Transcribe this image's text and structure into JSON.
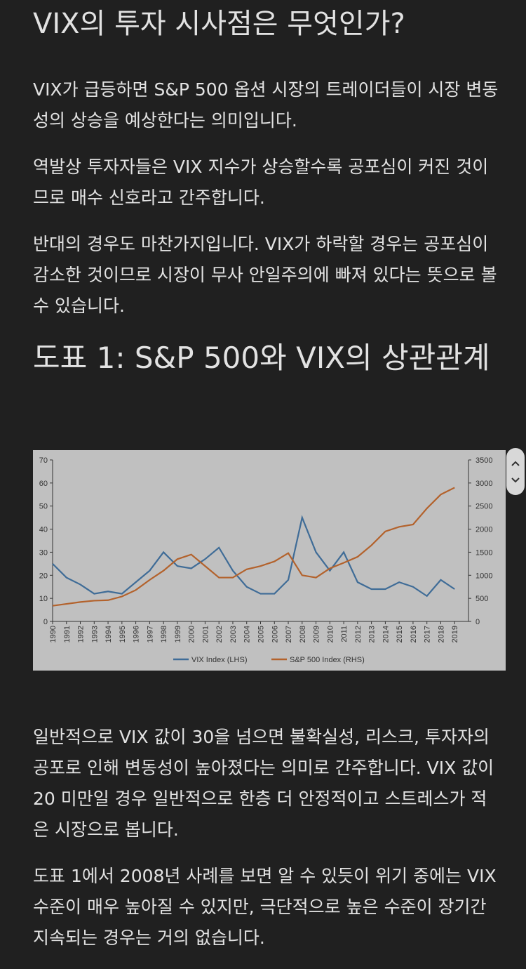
{
  "header": {
    "title": "VIX의 투자 시사점은 무엇인가?"
  },
  "paragraphs": [
    "VIX가 급등하면 S&P 500 옵션 시장의 트레이더들이 시장 변동성의 상승을 예상한다는 의미입니다.",
    "역발상 투자자들은 VIX 지수가 상승할수록 공포심이 커진 것이므로 매수 신호라고 간주합니다.",
    "반대의 경우도 마찬가지입니다. VIX가 하락할 경우는 공포심이 감소한 것이므로 시장이 무사 안일주의에 빠져 있다는 뜻으로 볼 수 있습니다."
  ],
  "figure_title": "도표 1: S&P 500와 VIX의 상관관계",
  "chart_data": {
    "type": "line",
    "x": [
      1990,
      1991,
      1992,
      1993,
      1994,
      1995,
      1996,
      1997,
      1998,
      1999,
      2000,
      2001,
      2002,
      2003,
      2004,
      2005,
      2006,
      2007,
      2008,
      2009,
      2010,
      2011,
      2012,
      2013,
      2014,
      2015,
      2016,
      2017,
      2018,
      2019
    ],
    "xlim": [
      1990,
      2020
    ],
    "xticks": [
      1990,
      1991,
      1992,
      1993,
      1994,
      1995,
      1996,
      1997,
      1998,
      1999,
      2000,
      2001,
      2002,
      2003,
      2004,
      2005,
      2006,
      2007,
      2008,
      2009,
      2010,
      2011,
      2012,
      2013,
      2014,
      2015,
      2016,
      2017,
      2018,
      2019
    ],
    "ylim": [
      0,
      70
    ],
    "yticks": [
      0,
      10,
      20,
      30,
      40,
      50,
      60,
      70
    ],
    "y2lim": [
      0,
      3500
    ],
    "y2ticks": [
      0,
      500,
      1000,
      1500,
      2000,
      2500,
      3000,
      3500
    ],
    "series": [
      {
        "name": "VIX Index (LHS)",
        "color": "#3f6c97",
        "values": [
          25,
          19,
          16,
          12,
          13,
          12,
          17,
          22,
          30,
          24,
          23,
          27,
          32,
          22,
          15,
          12,
          12,
          18,
          45,
          30,
          22,
          30,
          17,
          14,
          14,
          17,
          15,
          11,
          18,
          14
        ]
      },
      {
        "name": "S&P 500 Index (RHS)",
        "color": "#b3622c",
        "axis": "y2",
        "values": [
          340,
          380,
          420,
          450,
          460,
          540,
          680,
          900,
          1100,
          1350,
          1450,
          1200,
          950,
          950,
          1130,
          1200,
          1300,
          1480,
          1000,
          950,
          1150,
          1270,
          1400,
          1650,
          1950,
          2050,
          2100,
          2450,
          2750,
          2900
        ]
      }
    ]
  },
  "paragraphs_after": [
    "일반적으로 VIX 값이 30을 넘으면 불확실성, 리스크, 투자자의 공포로 인해 변동성이 높아졌다는 의미로 간주합니다. VIX 값이 20 미만일 경우 일반적으로 한층 더 안정적이고 스트레스가 적은 시장으로 봅니다.",
    "도표 1에서 2008년 사례를 보면 알 수 있듯이 위기 중에는 VIX 수준이 매우 높아질 수 있지만, 극단적으로 높은 수준이 장기간 지속되는 경우는 거의 없습니다."
  ]
}
